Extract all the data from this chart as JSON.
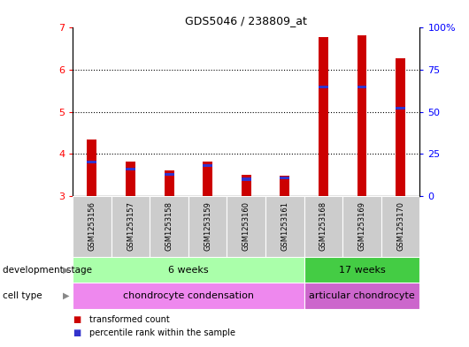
{
  "title": "GDS5046 / 238809_at",
  "samples": [
    "GSM1253156",
    "GSM1253157",
    "GSM1253158",
    "GSM1253159",
    "GSM1253160",
    "GSM1253161",
    "GSM1253168",
    "GSM1253169",
    "GSM1253170"
  ],
  "transformed_count": [
    4.35,
    3.82,
    3.62,
    3.82,
    3.5,
    3.48,
    6.77,
    6.82,
    6.28
  ],
  "percentile_rank": [
    20,
    16,
    13,
    18,
    10,
    11,
    65,
    65,
    52
  ],
  "ylim_left": [
    3,
    7
  ],
  "ylim_right": [
    0,
    100
  ],
  "yticks_left": [
    3,
    4,
    5,
    6,
    7
  ],
  "yticks_right": [
    0,
    25,
    50,
    75,
    100
  ],
  "ytick_labels_right": [
    "0",
    "25",
    "50",
    "75",
    "100%"
  ],
  "bar_color_red": "#cc0000",
  "bar_color_blue": "#3333cc",
  "plot_bg": "#ffffff",
  "development_stage_label": "development stage",
  "cell_type_label": "cell type",
  "groups": [
    {
      "label": "6 weeks",
      "start": 0,
      "end": 6,
      "color": "#aaffaa"
    },
    {
      "label": "17 weeks",
      "start": 6,
      "end": 9,
      "color": "#44cc44"
    }
  ],
  "cell_types": [
    {
      "label": "chondrocyte condensation",
      "start": 0,
      "end": 6,
      "color": "#ee88ee"
    },
    {
      "label": "articular chondrocyte",
      "start": 6,
      "end": 9,
      "color": "#cc66cc"
    }
  ],
  "legend_items": [
    {
      "color": "#cc0000",
      "label": "transformed count"
    },
    {
      "color": "#3333cc",
      "label": "percentile rank within the sample"
    }
  ],
  "sample_bg_color": "#cccccc",
  "bar_width": 0.25
}
